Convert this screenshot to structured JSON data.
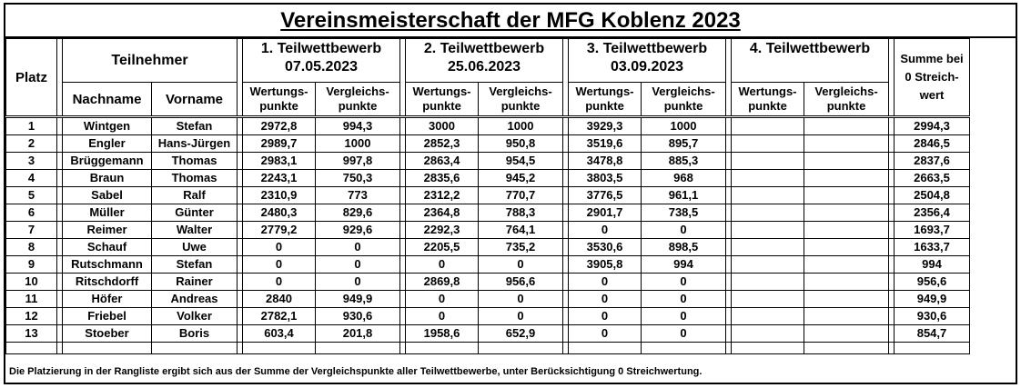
{
  "title": "Vereinsmeisterschaft der MFG Koblenz 2023",
  "header": {
    "platz": "Platz",
    "teilnehmer": "Teilnehmer",
    "nachname": "Nachname",
    "vorname": "Vorname",
    "wb1": "1. Teilwettbewerb",
    "wb1_date": "07.05.2023",
    "wb2": "2. Teilwettbewerb",
    "wb2_date": "25.06.2023",
    "wb3": "3. Teilwettbewerb",
    "wb3_date": "03.09.2023",
    "wb4": "4. Teilwettbewerb",
    "wertung_1": "Wertungs-",
    "wertung_2": "punkte",
    "vergleich_1": "Vergleichs-",
    "vergleich_2": "punkte",
    "summe_1": "Summe bei",
    "summe_2": "0 Streich-",
    "summe_3": "wert"
  },
  "rows": [
    {
      "platz": "1",
      "nachname": "Wintgen",
      "vorname": "Stefan",
      "w1": "2972,8",
      "v1": "994,3",
      "w2": "3000",
      "v2": "1000",
      "w3": "3929,3",
      "v3": "1000",
      "w4": "",
      "v4": "",
      "summe": "2994,3"
    },
    {
      "platz": "2",
      "nachname": "Engler",
      "vorname": "Hans-Jürgen",
      "w1": "2989,7",
      "v1": "1000",
      "w2": "2852,3",
      "v2": "950,8",
      "w3": "3519,6",
      "v3": "895,7",
      "w4": "",
      "v4": "",
      "summe": "2846,5"
    },
    {
      "platz": "3",
      "nachname": "Brüggemann",
      "vorname": "Thomas",
      "w1": "2983,1",
      "v1": "997,8",
      "w2": "2863,4",
      "v2": "954,5",
      "w3": "3478,8",
      "v3": "885,3",
      "w4": "",
      "v4": "",
      "summe": "2837,6"
    },
    {
      "platz": "4",
      "nachname": "Braun",
      "vorname": "Thomas",
      "w1": "2243,1",
      "v1": "750,3",
      "w2": "2835,6",
      "v2": "945,2",
      "w3": "3803,5",
      "v3": "968",
      "w4": "",
      "v4": "",
      "summe": "2663,5"
    },
    {
      "platz": "5",
      "nachname": "Sabel",
      "vorname": "Ralf",
      "w1": "2310,9",
      "v1": "773",
      "w2": "2312,2",
      "v2": "770,7",
      "w3": "3776,5",
      "v3": "961,1",
      "w4": "",
      "v4": "",
      "summe": "2504,8"
    },
    {
      "platz": "6",
      "nachname": "Müller",
      "vorname": "Günter",
      "w1": "2480,3",
      "v1": "829,6",
      "w2": "2364,8",
      "v2": "788,3",
      "w3": "2901,7",
      "v3": "738,5",
      "w4": "",
      "v4": "",
      "summe": "2356,4"
    },
    {
      "platz": "7",
      "nachname": "Reimer",
      "vorname": "Walter",
      "w1": "2779,2",
      "v1": "929,6",
      "w2": "2292,3",
      "v2": "764,1",
      "w3": "0",
      "v3": "0",
      "w4": "",
      "v4": "",
      "summe": "1693,7"
    },
    {
      "platz": "8",
      "nachname": "Schauf",
      "vorname": "Uwe",
      "w1": "0",
      "v1": "0",
      "w2": "2205,5",
      "v2": "735,2",
      "w3": "3530,6",
      "v3": "898,5",
      "w4": "",
      "v4": "",
      "summe": "1633,7"
    },
    {
      "platz": "9",
      "nachname": "Rutschmann",
      "vorname": "Stefan",
      "w1": "0",
      "v1": "0",
      "w2": "0",
      "v2": "0",
      "w3": "3905,8",
      "v3": "994",
      "w4": "",
      "v4": "",
      "summe": "994"
    },
    {
      "platz": "10",
      "nachname": "Ritschdorff",
      "vorname": "Rainer",
      "w1": "0",
      "v1": "0",
      "w2": "2869,8",
      "v2": "956,6",
      "w3": "0",
      "v3": "0",
      "w4": "",
      "v4": "",
      "summe": "956,6"
    },
    {
      "platz": "11",
      "nachname": "Höfer",
      "vorname": "Andreas",
      "w1": "2840",
      "v1": "949,9",
      "w2": "0",
      "v2": "0",
      "w3": "0",
      "v3": "0",
      "w4": "",
      "v4": "",
      "summe": "949,9"
    },
    {
      "platz": "12",
      "nachname": "Friebel",
      "vorname": "Volker",
      "w1": "2782,1",
      "v1": "930,6",
      "w2": "0",
      "v2": "0",
      "w3": "0",
      "v3": "0",
      "w4": "",
      "v4": "",
      "summe": "930,6"
    },
    {
      "platz": "13",
      "nachname": "Stoeber",
      "vorname": "Boris",
      "w1": "603,4",
      "v1": "201,8",
      "w2": "1958,6",
      "v2": "652,9",
      "w3": "0",
      "v3": "0",
      "w4": "",
      "v4": "",
      "summe": "854,7"
    }
  ],
  "footnote": "Die Platzierung in der Rangliste ergibt sich aus der Summe der Vergleichspunkte aller Teilwettbewerbe, unter Berücksichtigung  0 Streichwertung."
}
